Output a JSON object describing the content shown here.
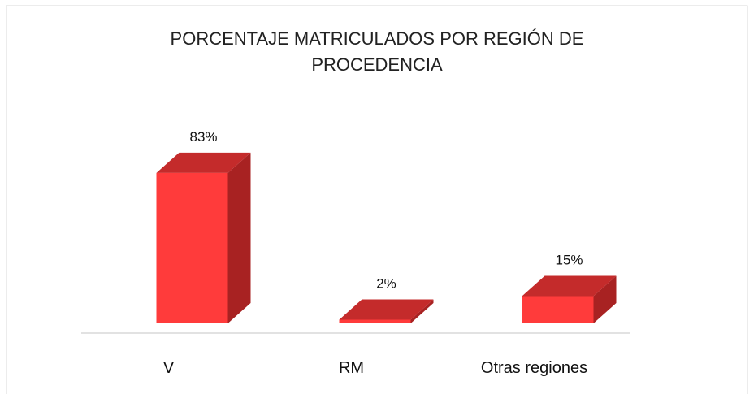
{
  "chart_data": {
    "type": "bar",
    "title": "PORCENTAJE MATRICULADOS POR REGIÓN DE PROCEDENCIA",
    "categories": [
      "V",
      "RM",
      "Otras regiones"
    ],
    "values": [
      83,
      2,
      15
    ],
    "value_labels": [
      "83%",
      "2%",
      "15%"
    ],
    "color": "#ff3b3b"
  }
}
